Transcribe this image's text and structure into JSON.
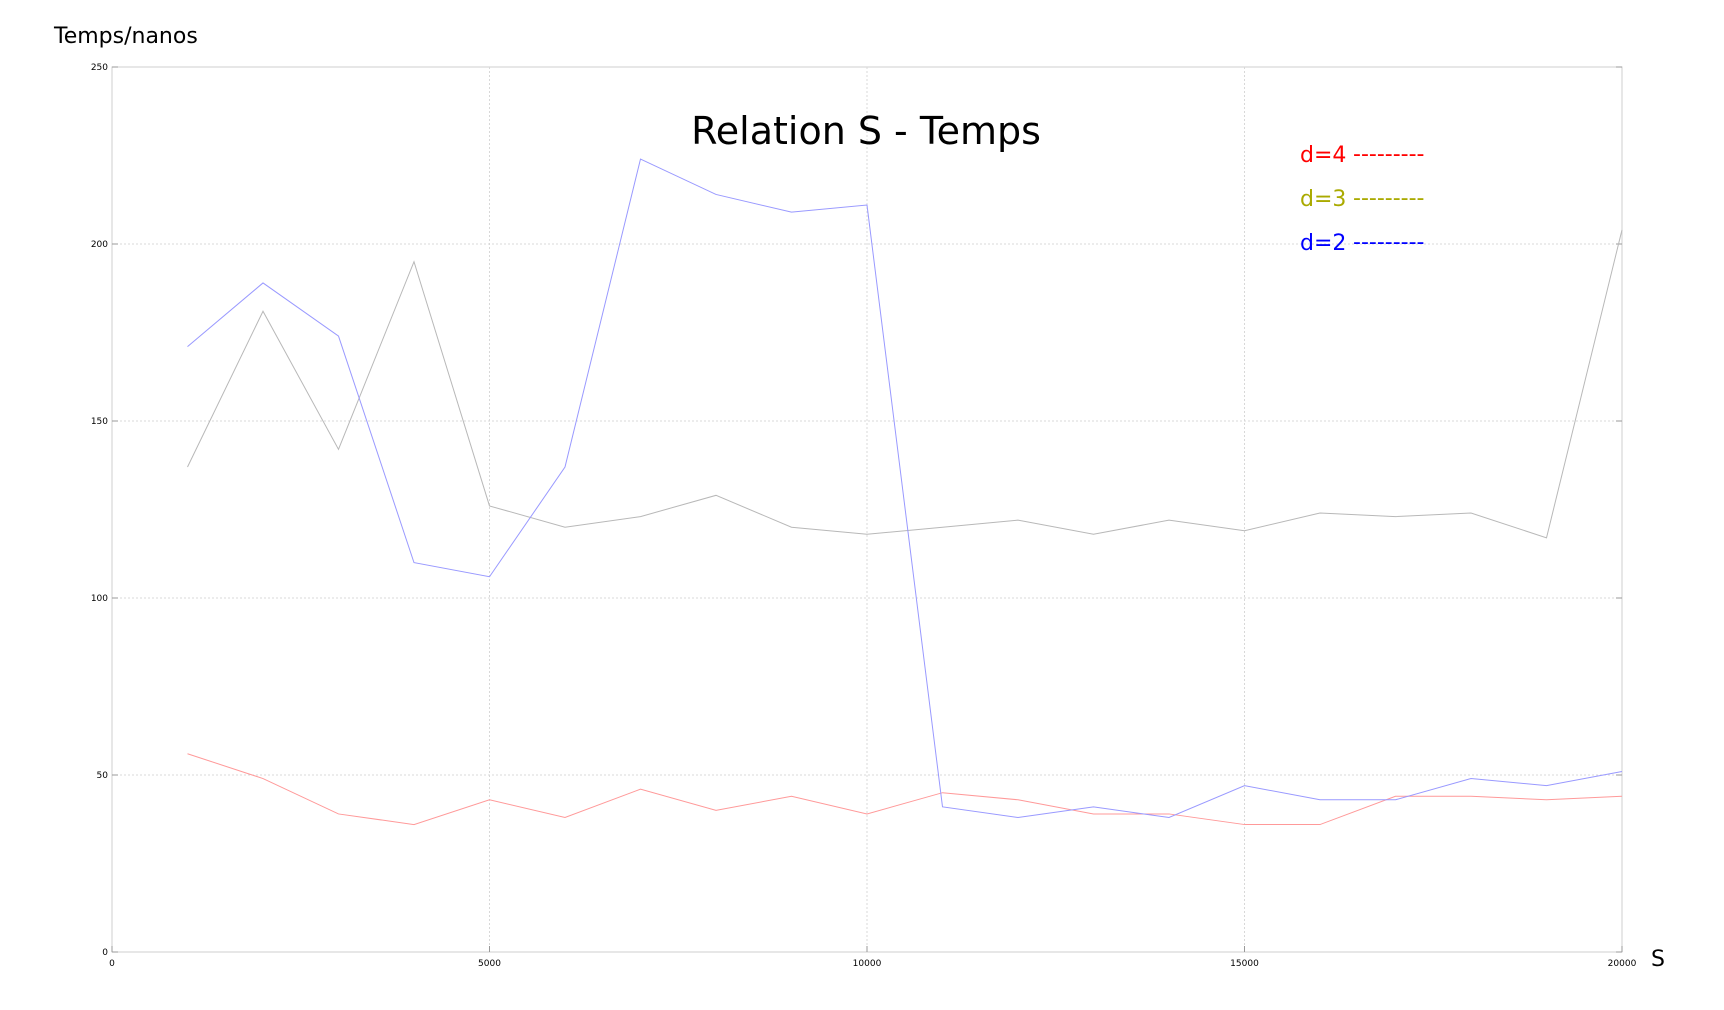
{
  "chart_data": {
    "type": "line",
    "title": "Relation S - Temps",
    "xlabel": "S",
    "ylabel": "Temps/nanos",
    "xlim": [
      0,
      20000
    ],
    "ylim": [
      0,
      250
    ],
    "x_ticks": [
      "0",
      "5000",
      "10000",
      "15000",
      "20000"
    ],
    "y_ticks": [
      "0",
      "50",
      "100",
      "150",
      "200",
      "250"
    ],
    "grid": true,
    "legend_position": "top-right",
    "legend": [
      {
        "label": "d=4",
        "color": "#ff0000",
        "dashes": "---------"
      },
      {
        "label": "d=3",
        "color": "#aaaa00",
        "dashes": "---------"
      },
      {
        "label": "d=2",
        "color": "#0000ff",
        "dashes": "---------"
      }
    ],
    "x": [
      1000,
      2000,
      3000,
      4000,
      5000,
      6000,
      7000,
      8000,
      9000,
      10000,
      11000,
      12000,
      13000,
      14000,
      15000,
      16000,
      17000,
      18000,
      19000,
      20000
    ],
    "series": [
      {
        "color": "#ff9999",
        "values": [
          56,
          49,
          39,
          36,
          43,
          38,
          46,
          40,
          44,
          39,
          45,
          43,
          39,
          39,
          36,
          36,
          44,
          44,
          43,
          44
        ]
      },
      {
        "color": "#b8b8b8",
        "values": [
          137,
          181,
          142,
          195,
          126,
          120,
          123,
          129,
          120,
          118,
          120,
          122,
          118,
          122,
          119,
          124,
          123,
          124,
          117,
          204
        ]
      },
      {
        "color": "#9999ff",
        "values": [
          171,
          189,
          174,
          110,
          106,
          137,
          224,
          214,
          209,
          211,
          41,
          38,
          41,
          38,
          47,
          43,
          43,
          49,
          47,
          51
        ]
      }
    ]
  }
}
